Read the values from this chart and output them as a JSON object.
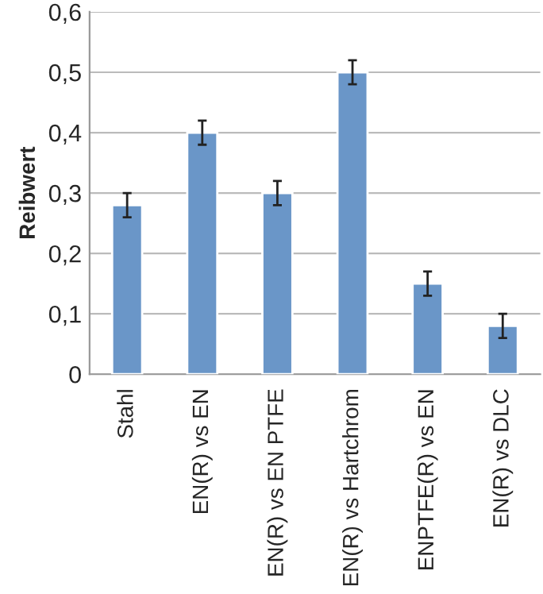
{
  "chart_data": {
    "type": "bar",
    "ylabel": "Reibwert",
    "categories": [
      "Stahl",
      "EN(R) vs EN",
      "EN(R) vs EN PTFE",
      "EN(R) vs Hartchrom",
      "ENPTFE(R) vs EN",
      "EN(R) vs DLC"
    ],
    "values": [
      0.28,
      0.4,
      0.3,
      0.5,
      0.15,
      0.08
    ],
    "errors": [
      0.02,
      0.02,
      0.02,
      0.02,
      0.02,
      0.02
    ],
    "color": "#6a96c8",
    "ylim": [
      0,
      0.6
    ],
    "yticks": [
      {
        "value": 0,
        "label": "0"
      },
      {
        "value": 0.1,
        "label": "0,1"
      },
      {
        "value": 0.2,
        "label": "0,2"
      },
      {
        "value": 0.3,
        "label": "0,3"
      },
      {
        "value": 0.4,
        "label": "0,4"
      },
      {
        "value": 0.5,
        "label": "0,5"
      },
      {
        "value": 0.6,
        "label": "0,6"
      }
    ],
    "grid": "y"
  }
}
